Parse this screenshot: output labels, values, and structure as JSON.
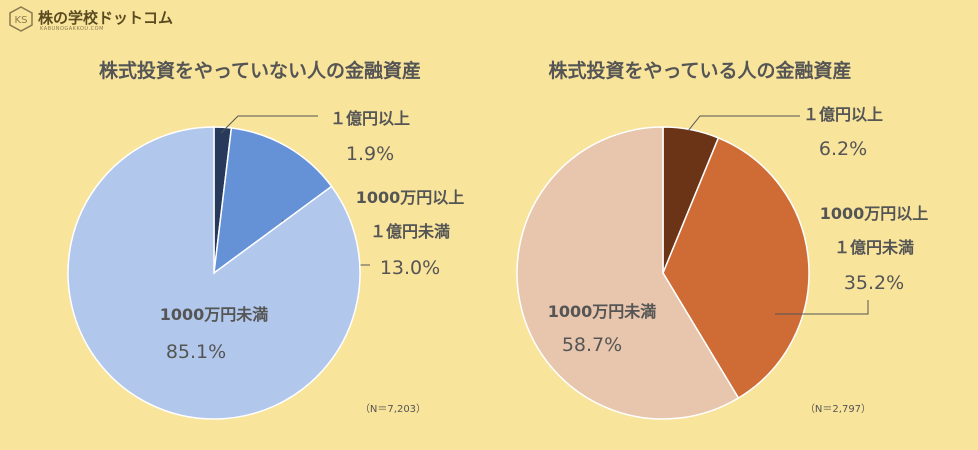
{
  "brand": {
    "name": "株の学校ドットコム",
    "sub": "KABUNOGAKKOU.COM",
    "mark": "KS"
  },
  "chart_data": [
    {
      "type": "pie",
      "title": "株式投資をやっていない人の金融資産",
      "note": "（N＝7,203）",
      "slices": [
        {
          "name": "１億円以上",
          "value": 1.9,
          "display": "1.9%",
          "color": "#283a5c"
        },
        {
          "name": "1000万円以上\n１億円未満",
          "value": 13.0,
          "display": "13.0%",
          "color": "#6592d6"
        },
        {
          "name": "1000万円未満",
          "value": 85.1,
          "display": "85.1%",
          "color": "#b1c8ec"
        }
      ]
    },
    {
      "type": "pie",
      "title": "株式投資をやっている人の金融資産",
      "note": "（N＝2,797）",
      "slices": [
        {
          "name": "１億円以上",
          "value": 6.2,
          "display": "6.2%",
          "color": "#6b3416"
        },
        {
          "name": "1000万円以上\n１億円未満",
          "value": 35.2,
          "display": "35.2%",
          "color": "#cf6c36"
        },
        {
          "name": "1000万円未満",
          "value": 58.7,
          "display": "58.7%",
          "color": "#e8c6ad"
        }
      ]
    }
  ]
}
